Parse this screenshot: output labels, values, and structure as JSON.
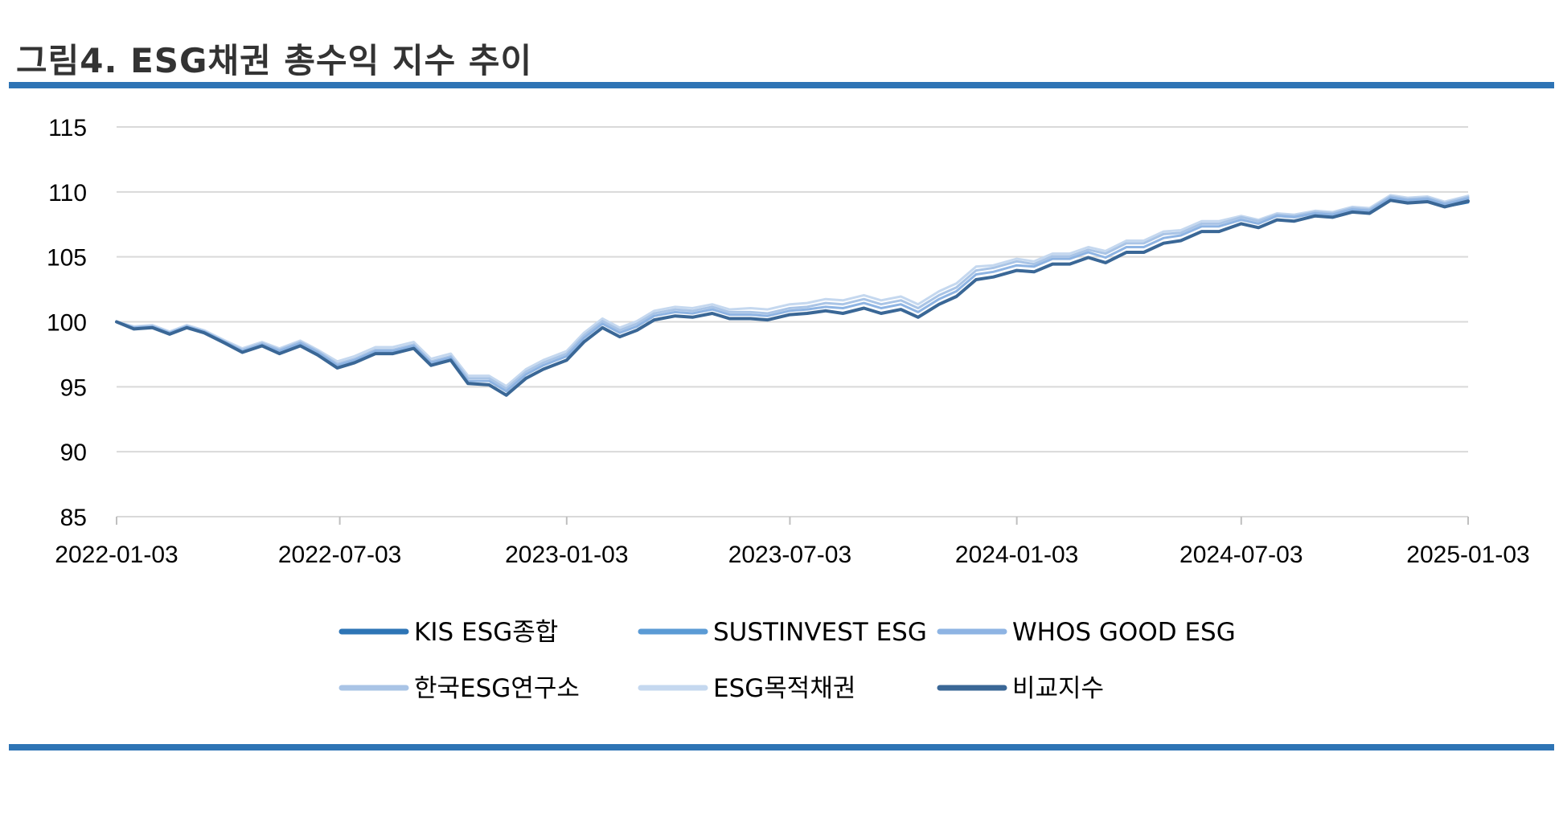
{
  "figure": {
    "title": "그림4. ESG채권 총수익 지수 추이"
  },
  "colors": {
    "rule": "#2e74b5",
    "grid": "#d9d9d9",
    "axis_text": "#000000"
  },
  "chart_data": {
    "type": "line",
    "title": "",
    "xlabel": "",
    "ylabel": "",
    "ylim": [
      85,
      115
    ],
    "yticks": [
      85,
      90,
      95,
      100,
      105,
      110,
      115
    ],
    "xticks": [
      "2022-01-03",
      "2022-07-03",
      "2023-01-03",
      "2023-07-03",
      "2024-01-03",
      "2024-07-03",
      "2025-01-03"
    ],
    "xrange": [
      "2022-01-03",
      "2025-01-03"
    ],
    "grid": "horizontal",
    "legend_position": "bottom",
    "x": [
      "2022-01-03",
      "2022-01-17",
      "2022-02-01",
      "2022-02-15",
      "2022-03-01",
      "2022-03-15",
      "2022-04-01",
      "2022-04-15",
      "2022-05-01",
      "2022-05-15",
      "2022-06-01",
      "2022-06-15",
      "2022-07-01",
      "2022-07-15",
      "2022-08-01",
      "2022-08-15",
      "2022-09-01",
      "2022-09-15",
      "2022-10-01",
      "2022-10-15",
      "2022-11-01",
      "2022-11-15",
      "2022-12-01",
      "2022-12-15",
      "2023-01-03",
      "2023-01-17",
      "2023-02-01",
      "2023-02-15",
      "2023-03-01",
      "2023-03-15",
      "2023-04-01",
      "2023-04-15",
      "2023-05-01",
      "2023-05-15",
      "2023-06-01",
      "2023-06-15",
      "2023-07-03",
      "2023-07-17",
      "2023-08-01",
      "2023-08-15",
      "2023-09-01",
      "2023-09-15",
      "2023-10-01",
      "2023-10-15",
      "2023-11-01",
      "2023-11-15",
      "2023-12-01",
      "2023-12-15",
      "2024-01-03",
      "2024-01-17",
      "2024-02-01",
      "2024-02-15",
      "2024-03-01",
      "2024-03-15",
      "2024-04-01",
      "2024-04-15",
      "2024-05-01",
      "2024-05-15",
      "2024-06-01",
      "2024-06-15",
      "2024-07-03",
      "2024-07-17",
      "2024-08-01",
      "2024-08-15",
      "2024-09-01",
      "2024-09-15",
      "2024-10-01",
      "2024-10-15",
      "2024-11-01",
      "2024-11-15",
      "2024-12-01",
      "2024-12-15",
      "2025-01-03"
    ],
    "series": [
      {
        "name": "KIS ESG종합",
        "color": "#2e75b6",
        "width": 3,
        "values": [
          100.0,
          99.6,
          99.4,
          99.2,
          99.4,
          99.3,
          98.2,
          97.8,
          98.0,
          97.7,
          98.0,
          97.6,
          96.3,
          97.0,
          97.4,
          97.7,
          97.8,
          96.8,
          96.9,
          95.4,
          95.0,
          94.5,
          95.5,
          96.5,
          96.9,
          98.6,
          99.4,
          99.0,
          99.2,
          100.3,
          100.3,
          100.5,
          100.5,
          100.4,
          100.1,
          100.3,
          100.4,
          100.8,
          100.7,
          100.8,
          100.9,
          100.8,
          100.8,
          100.5,
          101.2,
          102.1,
          103.1,
          103.6,
          103.8,
          104.0,
          104.3,
          104.6,
          104.8,
          104.7,
          105.2,
          105.5,
          105.9,
          106.4,
          106.8,
          107.1,
          107.4,
          107.4,
          107.7,
          107.9,
          108.0,
          108.2,
          108.3,
          108.5,
          109.2,
          109.3,
          109.1,
          109.0,
          109.2
        ]
      },
      {
        "name": "SUSTINVEST ESG",
        "color": "#5b9bd5",
        "width": 3,
        "values": [
          100.0,
          99.6,
          99.4,
          99.2,
          99.4,
          99.3,
          98.2,
          97.8,
          98.0,
          97.7,
          98.0,
          97.6,
          96.3,
          97.0,
          97.4,
          97.7,
          97.8,
          96.8,
          96.9,
          95.4,
          95.0,
          94.5,
          95.5,
          96.5,
          96.9,
          98.6,
          99.4,
          99.0,
          99.2,
          100.3,
          100.3,
          100.5,
          100.5,
          100.4,
          100.1,
          100.3,
          100.4,
          100.8,
          100.7,
          100.8,
          100.9,
          100.8,
          100.8,
          100.5,
          101.2,
          102.1,
          103.1,
          103.6,
          103.8,
          104.0,
          104.3,
          104.6,
          104.8,
          104.7,
          105.2,
          105.5,
          105.9,
          106.4,
          106.8,
          107.1,
          107.4,
          107.4,
          107.7,
          107.9,
          108.0,
          108.2,
          108.3,
          108.5,
          109.2,
          109.3,
          109.1,
          109.0,
          109.3
        ]
      },
      {
        "name": "WHOS GOOD ESG",
        "color": "#8eb4e3",
        "width": 3,
        "values": [
          100.0,
          99.7,
          99.5,
          99.3,
          99.5,
          99.4,
          98.3,
          97.9,
          98.1,
          97.9,
          98.2,
          97.8,
          96.5,
          97.2,
          97.6,
          97.9,
          98.0,
          97.0,
          97.1,
          95.6,
          95.3,
          94.8,
          95.8,
          96.8,
          97.2,
          98.9,
          99.7,
          99.3,
          99.5,
          100.6,
          100.6,
          100.8,
          100.8,
          100.7,
          100.4,
          100.6,
          100.7,
          101.1,
          101.0,
          101.2,
          101.3,
          101.2,
          101.2,
          100.9,
          101.6,
          102.5,
          103.5,
          104.0,
          104.2,
          104.4,
          104.7,
          105.0,
          105.2,
          105.1,
          105.6,
          105.9,
          106.3,
          106.8,
          107.2,
          107.5,
          107.7,
          107.7,
          108.0,
          108.2,
          108.2,
          108.4,
          108.5,
          108.7,
          109.4,
          109.5,
          109.3,
          109.2,
          109.5
        ]
      },
      {
        "name": "한국ESG연구소",
        "color": "#a9c4e6",
        "width": 3,
        "values": [
          100.0,
          99.7,
          99.5,
          99.3,
          99.5,
          99.4,
          98.3,
          98.0,
          98.2,
          98.0,
          98.3,
          97.9,
          96.6,
          97.3,
          97.7,
          98.0,
          98.1,
          97.1,
          97.2,
          95.8,
          95.5,
          95.0,
          96.0,
          97.0,
          97.4,
          99.1,
          99.9,
          99.5,
          99.7,
          100.8,
          100.8,
          101.0,
          101.0,
          100.9,
          100.6,
          100.8,
          100.9,
          101.3,
          101.3,
          101.5,
          101.6,
          101.5,
          101.5,
          101.2,
          101.9,
          102.8,
          103.8,
          104.3,
          104.5,
          104.6,
          104.9,
          105.2,
          105.4,
          105.4,
          105.9,
          106.2,
          106.6,
          107.0,
          107.4,
          107.7,
          107.9,
          107.9,
          108.1,
          108.3,
          108.3,
          108.5,
          108.6,
          108.8,
          109.5,
          109.6,
          109.4,
          109.3,
          109.6
        ]
      },
      {
        "name": "ESG목적채권",
        "color": "#c5d8ef",
        "width": 3,
        "values": [
          100.0,
          99.8,
          99.6,
          99.4,
          99.6,
          99.5,
          98.4,
          98.1,
          98.3,
          98.1,
          98.4,
          98.0,
          96.8,
          97.5,
          97.9,
          98.2,
          98.3,
          97.3,
          97.4,
          96.0,
          95.7,
          95.2,
          96.2,
          97.2,
          97.6,
          99.3,
          100.1,
          99.7,
          99.9,
          101.0,
          101.0,
          101.2,
          101.2,
          101.1,
          100.9,
          101.1,
          101.2,
          101.6,
          101.6,
          101.8,
          101.9,
          101.8,
          101.8,
          101.5,
          102.2,
          103.1,
          104.1,
          104.5,
          104.7,
          104.8,
          105.1,
          105.4,
          105.6,
          105.6,
          106.1,
          106.4,
          106.8,
          107.2,
          107.6,
          107.9,
          108.0,
          108.0,
          108.2,
          108.4,
          108.4,
          108.6,
          108.7,
          108.9,
          109.6,
          109.7,
          109.5,
          109.4,
          109.7
        ]
      },
      {
        "name": "비교지수",
        "color": "#3a6796",
        "width": 4,
        "values": [
          100.0,
          99.6,
          99.4,
          99.2,
          99.4,
          99.3,
          98.2,
          97.8,
          98.0,
          97.7,
          98.0,
          97.6,
          96.3,
          97.0,
          97.4,
          97.7,
          97.8,
          96.8,
          96.9,
          95.4,
          95.0,
          94.5,
          95.5,
          96.5,
          96.9,
          98.6,
          99.4,
          99.0,
          99.2,
          100.3,
          100.3,
          100.5,
          100.5,
          100.4,
          100.1,
          100.3,
          100.4,
          100.8,
          100.7,
          100.8,
          100.9,
          100.8,
          100.8,
          100.5,
          101.2,
          102.1,
          103.1,
          103.6,
          103.8,
          104.0,
          104.3,
          104.6,
          104.8,
          104.7,
          105.2,
          105.5,
          105.9,
          106.4,
          106.8,
          107.1,
          107.4,
          107.4,
          107.7,
          107.9,
          108.0,
          108.2,
          108.3,
          108.5,
          109.2,
          109.3,
          109.1,
          109.0,
          109.3
        ]
      }
    ]
  }
}
